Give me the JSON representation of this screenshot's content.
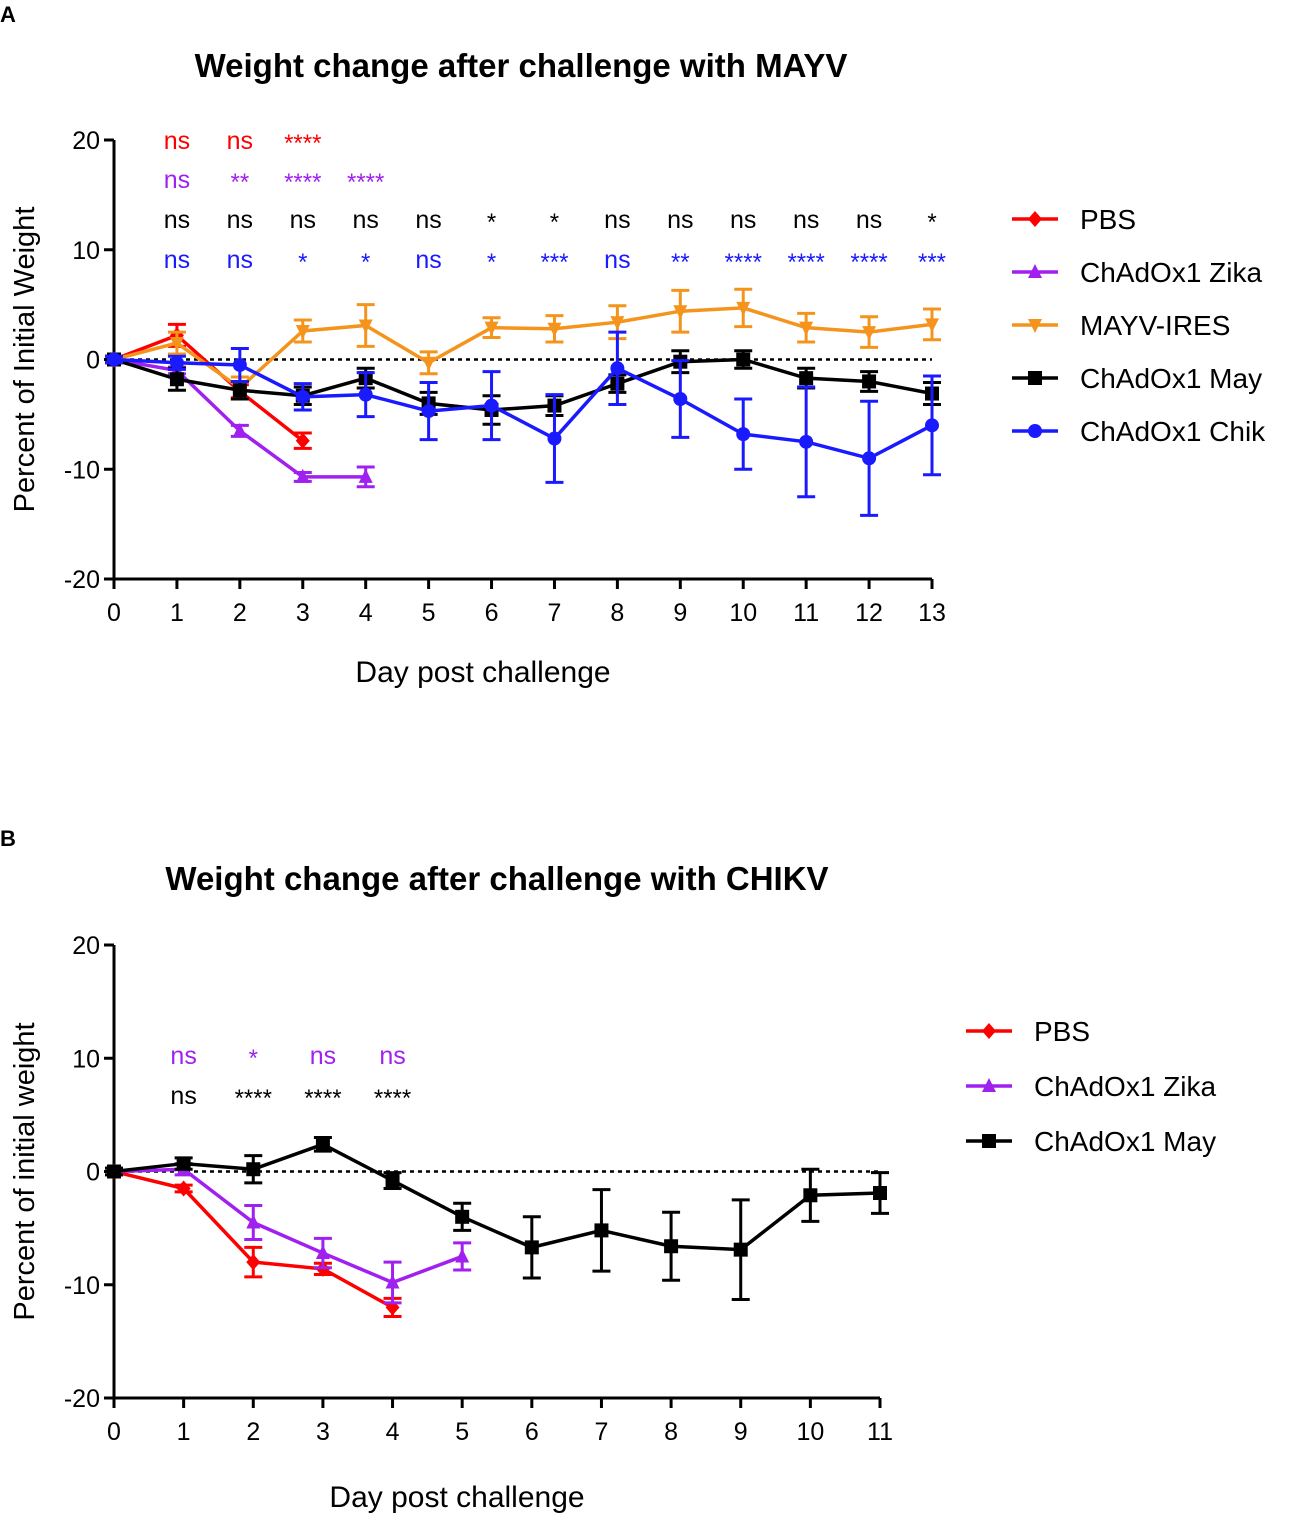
{
  "colors": {
    "PBS": "#ff0000",
    "Zika": "#a020f0",
    "MAYV-IRES": "#f4941c",
    "May": "#000000",
    "Chik": "#1a1aff"
  },
  "chart_data": [
    {
      "panel": "A",
      "type": "line",
      "title": "Weight change after challenge with MAYV",
      "xlabel": "Day post challenge",
      "ylabel": "Percent of Initial Weight",
      "xlim": [
        0,
        13
      ],
      "ylim": [
        -20,
        20
      ],
      "yticks": [
        20,
        10,
        0,
        -10,
        -20
      ],
      "xticks": [
        0,
        1,
        2,
        3,
        4,
        5,
        6,
        7,
        8,
        9,
        10,
        11,
        12,
        13
      ],
      "reference_line": 0,
      "series": [
        {
          "name": "PBS",
          "key": "PBS",
          "marker": "diamond",
          "x": [
            0,
            1,
            2,
            3
          ],
          "y": [
            0,
            2.2,
            -2.9,
            -7.4
          ],
          "err": [
            0.3,
            1.0,
            0.6,
            0.7
          ]
        },
        {
          "name": "ChAdOx1 Zika",
          "key": "Zika",
          "marker": "triangle-up",
          "x": [
            0,
            1,
            2,
            3,
            4
          ],
          "y": [
            0,
            -1.0,
            -6.5,
            -10.7,
            -10.7
          ],
          "err": [
            0.3,
            0.3,
            0.5,
            0.4,
            0.9
          ]
        },
        {
          "name": "MAYV-IRES",
          "key": "MAYV-IRES",
          "marker": "triangle-down",
          "x": [
            0,
            1,
            2,
            3,
            4,
            5,
            6,
            7,
            8,
            9,
            10,
            11,
            12,
            13
          ],
          "y": [
            0,
            1.5,
            -2.6,
            2.6,
            3.1,
            -0.3,
            2.9,
            2.8,
            3.4,
            4.4,
            4.7,
            2.9,
            2.5,
            3.2
          ],
          "err": [
            0.3,
            1.0,
            1.0,
            1.0,
            1.9,
            1.0,
            0.9,
            1.2,
            1.5,
            1.9,
            1.7,
            1.3,
            1.4,
            1.4
          ]
        },
        {
          "name": "ChAdOx1 May",
          "key": "May",
          "marker": "square",
          "x": [
            0,
            1,
            2,
            3,
            4,
            5,
            6,
            7,
            8,
            9,
            10,
            11,
            12,
            13
          ],
          "y": [
            0,
            -1.8,
            -2.8,
            -3.3,
            -1.7,
            -4.0,
            -4.6,
            -4.2,
            -2.2,
            -0.2,
            0,
            -1.7,
            -2.0,
            -3.1
          ],
          "err": [
            0.3,
            1.0,
            0.8,
            0.8,
            0.9,
            1.0,
            1.3,
            0.9,
            0.8,
            1.0,
            0.8,
            0.9,
            0.9,
            1.0
          ]
        },
        {
          "name": "ChAdOx1 Chik",
          "key": "Chik",
          "marker": "circle",
          "x": [
            0,
            1,
            2,
            3,
            4,
            5,
            6,
            7,
            8,
            9,
            10,
            11,
            12,
            13
          ],
          "y": [
            0,
            -0.3,
            -0.5,
            -3.4,
            -3.2,
            -4.7,
            -4.2,
            -7.2,
            -0.8,
            -3.6,
            -6.8,
            -7.5,
            -9.0,
            -6.0
          ],
          "err": [
            0.3,
            0.6,
            1.5,
            1.2,
            2.0,
            2.6,
            3.1,
            4.0,
            3.3,
            3.5,
            3.2,
            5.0,
            5.2,
            4.5
          ]
        }
      ],
      "annotations": [
        {
          "key": "PBS",
          "row": 1,
          "labels": [
            "ns",
            "ns",
            "****"
          ],
          "days": [
            1,
            2,
            3
          ]
        },
        {
          "key": "Zika",
          "row": 2,
          "labels": [
            "ns",
            "**",
            "****",
            "****"
          ],
          "days": [
            1,
            2,
            3,
            4
          ]
        },
        {
          "key": "May",
          "row": 3,
          "labels": [
            "ns",
            "ns",
            "ns",
            "ns",
            "ns",
            "*",
            "*",
            "ns",
            "ns",
            "ns",
            "ns",
            "ns",
            "*"
          ],
          "days": [
            1,
            2,
            3,
            4,
            5,
            6,
            7,
            8,
            9,
            10,
            11,
            12,
            13
          ]
        },
        {
          "key": "Chik",
          "row": 4,
          "labels": [
            "ns",
            "ns",
            "*",
            "*",
            "ns",
            "*",
            "***",
            "ns",
            "**",
            "****",
            "****",
            "****",
            "***"
          ],
          "days": [
            1,
            2,
            3,
            4,
            5,
            6,
            7,
            8,
            9,
            10,
            11,
            12,
            13
          ]
        }
      ]
    },
    {
      "panel": "B",
      "type": "line",
      "title": "Weight change after challenge with CHIKV",
      "xlabel": "Day post challenge",
      "ylabel": "Percent of initial weight",
      "xlim": [
        0,
        11
      ],
      "ylim": [
        -20,
        20
      ],
      "yticks": [
        20,
        10,
        0,
        -10,
        -20
      ],
      "xticks": [
        0,
        1,
        2,
        3,
        4,
        5,
        6,
        7,
        8,
        9,
        10,
        11
      ],
      "reference_line": 0,
      "series": [
        {
          "name": "PBS",
          "key": "PBS",
          "marker": "diamond",
          "x": [
            0,
            1,
            2,
            3,
            4
          ],
          "y": [
            0,
            -1.5,
            -8.0,
            -8.6,
            -12.0
          ],
          "err": [
            0.3,
            0.3,
            1.3,
            0.5,
            0.8
          ]
        },
        {
          "name": "ChAdOx1 Zika",
          "key": "Zika",
          "marker": "triangle-up",
          "x": [
            0,
            1,
            2,
            3,
            4,
            5
          ],
          "y": [
            0,
            0.2,
            -4.5,
            -7.2,
            -9.8,
            -7.5
          ],
          "err": [
            0.3,
            0.5,
            1.5,
            1.3,
            1.8,
            1.2
          ]
        },
        {
          "name": "ChAdOx1 May",
          "key": "May",
          "marker": "square",
          "x": [
            0,
            1,
            2,
            3,
            4,
            5,
            6,
            7,
            8,
            9,
            10,
            11
          ],
          "y": [
            0,
            0.7,
            0.2,
            2.4,
            -0.8,
            -4.0,
            -6.7,
            -5.2,
            -6.6,
            -6.9,
            -2.1,
            -1.9
          ],
          "err": [
            0.3,
            0.5,
            1.2,
            0.6,
            0.7,
            1.2,
            2.7,
            3.6,
            3.0,
            4.4,
            2.3,
            1.8
          ]
        }
      ],
      "annotations": [
        {
          "key": "Zika",
          "row": 1,
          "labels": [
            "ns",
            "*",
            "ns",
            "ns"
          ],
          "days": [
            1,
            2,
            3,
            4
          ]
        },
        {
          "key": "May",
          "row": 2,
          "labels": [
            "ns",
            "****",
            "****",
            "****"
          ],
          "days": [
            1,
            2,
            3,
            4
          ]
        }
      ]
    }
  ]
}
